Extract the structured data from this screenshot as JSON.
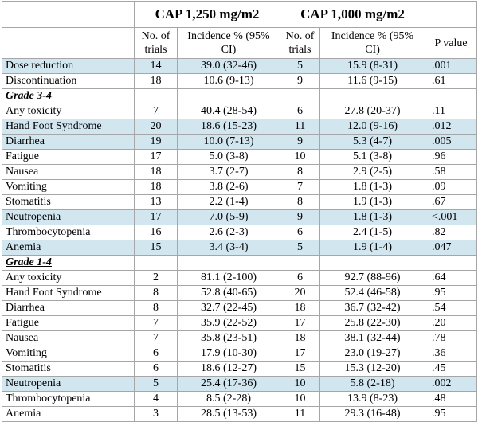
{
  "header": {
    "group1_title": "CAP 1,250 mg/m2",
    "group2_title": "CAP 1,000 mg/m2",
    "col_trials": "No. of trials",
    "col_incidence": "Incidence % (95% CI)",
    "col_pvalue": "P value"
  },
  "rows_top": [
    {
      "name": "Dose reduction",
      "n1": "14",
      "inc1": "39.0 (32-46)",
      "n2": "5",
      "inc2": "15.9 (8-31)",
      "p": ".001"
    },
    {
      "name": "Discontinuation",
      "n1": "18",
      "inc1": "10.6 (9-13)",
      "n2": "9",
      "inc2": "11.6 (9-15)",
      "p": ".61"
    }
  ],
  "section_grade34": "Grade 3-4",
  "rows_grade34": [
    {
      "name": "Any toxicity",
      "n1": "7",
      "inc1": "40.4 (28-54)",
      "n2": "6",
      "inc2": "27.8 (20-37)",
      "p": ".11"
    },
    {
      "name": "Hand Foot Syndrome",
      "n1": "20",
      "inc1": "18.6 (15-23)",
      "n2": "11",
      "inc2": "12.0 (9-16)",
      "p": ".012"
    },
    {
      "name": "Diarrhea",
      "n1": "19",
      "inc1": "10.0 (7-13)",
      "n2": "9",
      "inc2": "5.3 (4-7)",
      "p": ".005"
    },
    {
      "name": "Fatigue",
      "n1": "17",
      "inc1": "5.0 (3-8)",
      "n2": "10",
      "inc2": "5.1 (3-8)",
      "p": ".96"
    },
    {
      "name": "Nausea",
      "n1": "18",
      "inc1": "3.7 (2-7)",
      "n2": "8",
      "inc2": "2.9 (2-5)",
      "p": ".58"
    },
    {
      "name": "Vomiting",
      "n1": "18",
      "inc1": "3.8 (2-6)",
      "n2": "7",
      "inc2": "1.8 (1-3)",
      "p": ".09"
    },
    {
      "name": "Stomatitis",
      "n1": "13",
      "inc1": "2.2 (1-4)",
      "n2": "8",
      "inc2": "1.9 (1-3)",
      "p": ".67"
    },
    {
      "name": "Neutropenia",
      "n1": "17",
      "inc1": "7.0 (5-9)",
      "n2": "9",
      "inc2": "1.8 (1-3)",
      "p": "<.001"
    },
    {
      "name": "Thrombocytopenia",
      "n1": "16",
      "inc1": "2.6 (2-3)",
      "n2": "6",
      "inc2": "2.4 (1-5)",
      "p": ".82"
    },
    {
      "name": "Anemia",
      "n1": "15",
      "inc1": "3.4 (3-4)",
      "n2": "5",
      "inc2": "1.9 (1-4)",
      "p": ".047"
    }
  ],
  "section_grade14": "Grade 1-4",
  "rows_grade14": [
    {
      "name": "Any toxicity",
      "n1": "2",
      "inc1": "81.1 (2-100)",
      "n2": "6",
      "inc2": "92.7 (88-96)",
      "p": ".64"
    },
    {
      "name": "Hand Foot Syndrome",
      "n1": "8",
      "inc1": "52.8 (40-65)",
      "n2": "20",
      "inc2": "52.4 (46-58)",
      "p": ".95"
    },
    {
      "name": "Diarrhea",
      "n1": "8",
      "inc1": "32.7 (22-45)",
      "n2": "18",
      "inc2": "36.7 (32-42)",
      "p": ".54"
    },
    {
      "name": "Fatigue",
      "n1": "7",
      "inc1": "35.9 (22-52)",
      "n2": "17",
      "inc2": "25.8 (22-30)",
      "p": ".20"
    },
    {
      "name": "Nausea",
      "n1": "7",
      "inc1": "35.8 (23-51)",
      "n2": "18",
      "inc2": "38.1 (32-44)",
      "p": ".78"
    },
    {
      "name": "Vomiting",
      "n1": "6",
      "inc1": "17.9 (10-30)",
      "n2": "17",
      "inc2": "23.0 (19-27)",
      "p": ".36"
    },
    {
      "name": "Stomatitis",
      "n1": "6",
      "inc1": "18.6 (12-27)",
      "n2": "15",
      "inc2": "15.3 (12-20)",
      "p": ".45"
    },
    {
      "name": "Neutropenia",
      "n1": "5",
      "inc1": "25.4 (17-36)",
      "n2": "10",
      "inc2": "5.8 (2-18)",
      "p": ".002"
    },
    {
      "name": "Thrombocytopenia",
      "n1": "4",
      "inc1": "8.5 (2-28)",
      "n2": "10",
      "inc2": "13.9 (8-23)",
      "p": ".48"
    },
    {
      "name": "Anemia",
      "n1": "3",
      "inc1": "28.5 (13-53)",
      "n2": "11",
      "inc2": "29.3 (16-48)",
      "p": ".95"
    }
  ]
}
